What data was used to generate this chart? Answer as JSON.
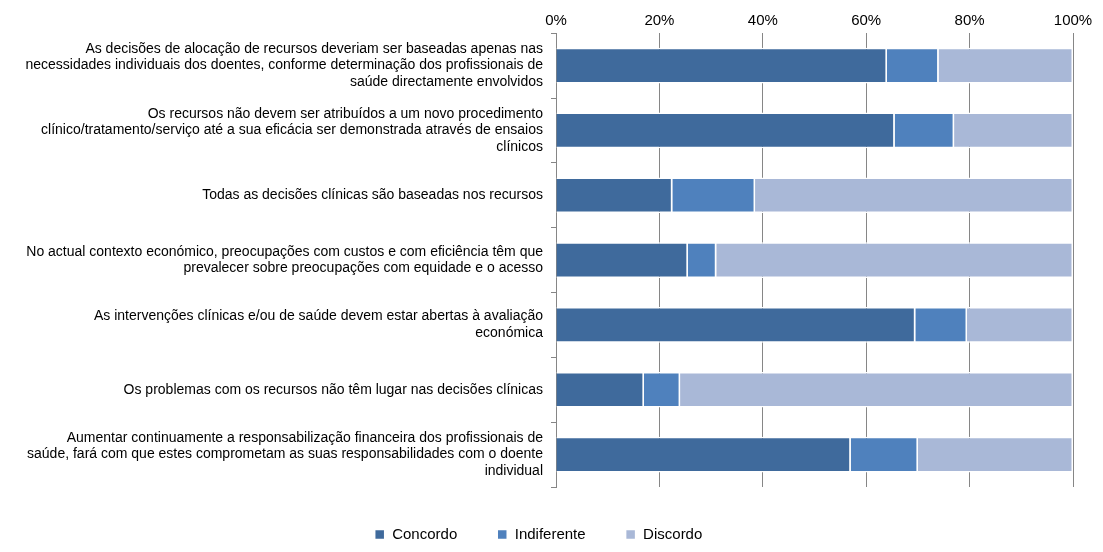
{
  "chart_data": {
    "type": "bar",
    "orientation": "horizontal",
    "stacked": true,
    "categories": [
      "As decisões de alocação de recursos deveriam ser baseadas apenas nas necessidades individuais dos doentes, conforme determinação dos profissionais de saúde directamente envolvidos",
      "Os recursos não devem ser atribuídos a um novo procedimento clínico/tratamento/serviço até a sua eficácia ser demonstrada através de ensaios clínicos",
      "Todas as decisões clínicas são baseadas nos recursos",
      "No actual contexto económico, preocupações com custos e com eficiência têm que prevalecer sobre preocupações com equidade e o acesso",
      "As intervenções clínicas e/ou de saúde devem estar abertas à avaliação económica",
      "Os problemas com os recursos não têm lugar nas decisões clínicas",
      "Aumentar continuamente a responsabilização financeira dos profissionais de saúde, fará com que estes comprometam as suas responsabilidades com o doente individual"
    ],
    "series": [
      {
        "name": "Concordo",
        "color": "#3f6a9c",
        "values": [
          64,
          65.5,
          22.5,
          25.5,
          69.5,
          17,
          57
        ]
      },
      {
        "name": "Indiferente",
        "color": "#4f81bd",
        "values": [
          10,
          11.5,
          16,
          5.5,
          10,
          7,
          13
        ]
      },
      {
        "name": "Discordo",
        "color": "#a9b8d7",
        "values": [
          26,
          23,
          61.5,
          69,
          20.5,
          76,
          30
        ]
      }
    ],
    "xlim": [
      0,
      100
    ],
    "xticks": [
      {
        "value": 0,
        "label": "0%"
      },
      {
        "value": 20,
        "label": "20%"
      },
      {
        "value": 40,
        "label": "40%"
      },
      {
        "value": 60,
        "label": "60%"
      },
      {
        "value": 80,
        "label": "80%"
      },
      {
        "value": 100,
        "label": "100%"
      }
    ],
    "grid": "x",
    "legend": "bottom"
  }
}
